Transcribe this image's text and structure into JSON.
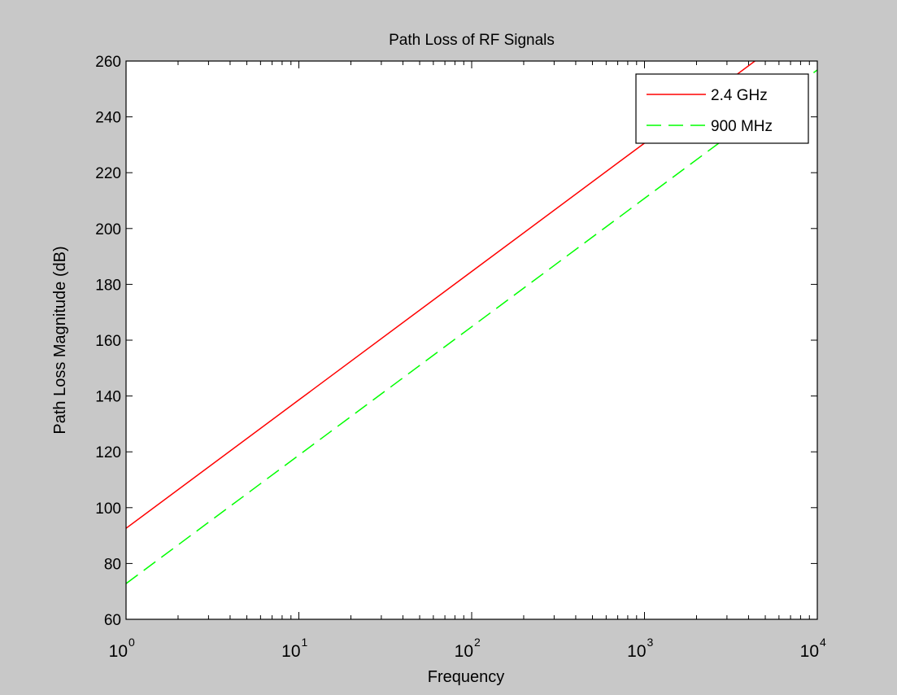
{
  "colors": {
    "figure_bg": "#c8c8c8",
    "axes_bg": "#ffffff",
    "series_2_4ghz": "#ff0000",
    "series_900mhz": "#00ff00"
  },
  "chart_data": {
    "type": "line",
    "title": "Path Loss of RF Signals",
    "xlabel": "Frequency",
    "ylabel": "Path Loss Magnitude (dB)",
    "xscale": "log",
    "xlim": [
      1,
      10000
    ],
    "ylim": [
      60,
      260
    ],
    "xticks": [
      {
        "base": "10",
        "exp": "0",
        "value": 1
      },
      {
        "base": "10",
        "exp": "1",
        "value": 10
      },
      {
        "base": "10",
        "exp": "2",
        "value": 100
      },
      {
        "base": "10",
        "exp": "3",
        "value": 1000
      },
      {
        "base": "10",
        "exp": "4",
        "value": 10000
      }
    ],
    "yticks": [
      "60",
      "80",
      "100",
      "120",
      "140",
      "160",
      "180",
      "200",
      "220",
      "240",
      "260"
    ],
    "grid": false,
    "legend": {
      "placement": "top-right"
    },
    "series": [
      {
        "name": "2.4 GHz",
        "color": "#ff0000",
        "style": "solid",
        "x": [
          1,
          10,
          100,
          1000,
          10000
        ],
        "y": [
          92.6,
          138.6,
          184.6,
          230.6,
          276.6
        ]
      },
      {
        "name": "900 MHz",
        "color": "#00ff00",
        "style": "dashed",
        "x": [
          1,
          10,
          100,
          1000,
          10000
        ],
        "y": [
          72.8,
          118.8,
          164.8,
          210.8,
          256.8
        ]
      }
    ]
  }
}
